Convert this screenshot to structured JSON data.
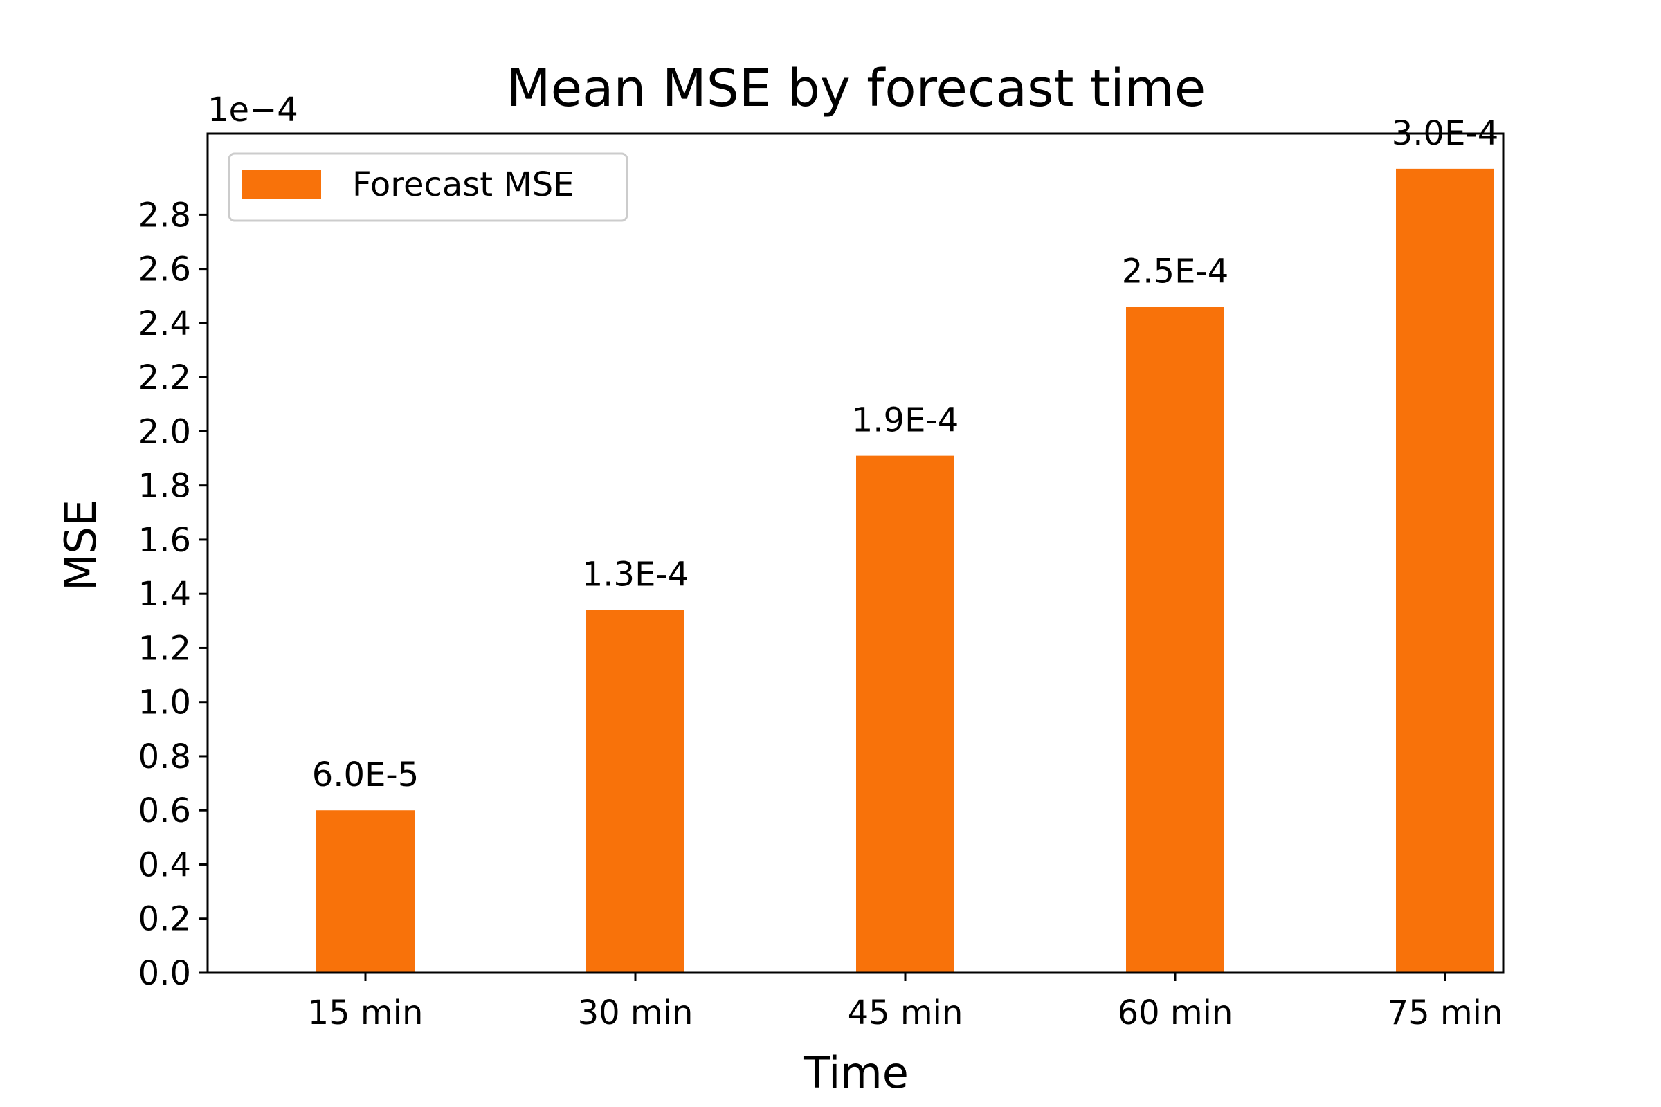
{
  "chart_data": {
    "type": "bar",
    "title": "Mean MSE by forecast time",
    "xlabel": "Time",
    "ylabel": "MSE",
    "y_offset_label": "1e−4",
    "categories": [
      "15 min",
      "30 min",
      "45 min",
      "60 min",
      "75 min"
    ],
    "series": [
      {
        "name": "Forecast MSE",
        "values": [
          6e-05,
          0.000134,
          0.000191,
          0.000246,
          0.000297
        ],
        "value_labels": [
          "6.0E-5",
          "1.3E-4",
          "1.9E-4",
          "2.5E-4",
          "3.0E-4"
        ],
        "color": "#f8720a"
      }
    ],
    "ylim": [
      0,
      0.00031
    ],
    "yticks": [
      0,
      2e-05,
      4e-05,
      6e-05,
      8e-05,
      0.0001,
      0.00012,
      0.00014,
      0.00016,
      0.00018,
      0.0002,
      0.00022,
      0.00024,
      0.00026,
      0.00028
    ],
    "ytick_labels": [
      "0.0",
      "0.2",
      "0.4",
      "0.6",
      "0.8",
      "1.0",
      "1.2",
      "1.4",
      "1.6",
      "1.8",
      "2.0",
      "2.2",
      "2.4",
      "2.6",
      "2.8"
    ],
    "grid": false,
    "legend_position": "top-left"
  }
}
